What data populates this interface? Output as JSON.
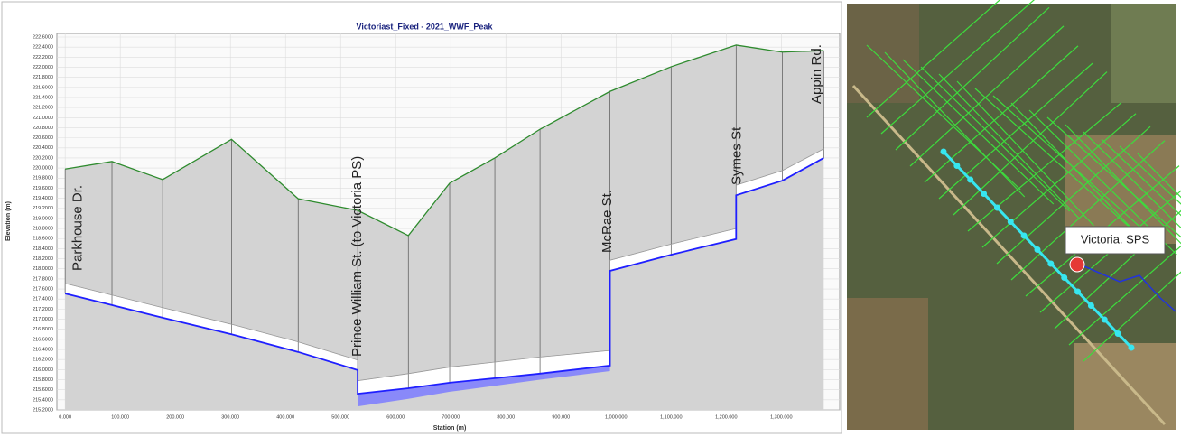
{
  "chart_data": {
    "type": "line",
    "title": "Victoriast_Fixed - 2021_WWF_Peak",
    "xlabel": "Station (m)",
    "ylabel": "Elevation (m)",
    "xlim": [
      -15,
      1406
    ],
    "ylim": [
      215.2,
      222.6
    ],
    "grid": true,
    "xticks": [
      {
        "value": 0,
        "label": "0.000"
      },
      {
        "value": 100,
        "label": "100.000"
      },
      {
        "value": 200,
        "label": "200.000"
      },
      {
        "value": 300,
        "label": "300.000"
      },
      {
        "value": 400,
        "label": "400.000"
      },
      {
        "value": 500,
        "label": "500.000"
      },
      {
        "value": 600,
        "label": "600.000"
      },
      {
        "value": 700,
        "label": "700.000"
      },
      {
        "value": 800,
        "label": "800.000"
      },
      {
        "value": 900,
        "label": "900.000"
      },
      {
        "value": 1000,
        "label": "1,000.000"
      },
      {
        "value": 1100,
        "label": "1,100.000"
      },
      {
        "value": 1200,
        "label": "1,200.000"
      },
      {
        "value": 1300,
        "label": "1,300.000"
      }
    ],
    "yticks": [
      {
        "value": 215.2,
        "label": "215.2000"
      },
      {
        "value": 215.4,
        "label": "215.4000"
      },
      {
        "value": 215.6,
        "label": "215.6000"
      },
      {
        "value": 215.8,
        "label": "215.8000"
      },
      {
        "value": 216.0,
        "label": "216.0000"
      },
      {
        "value": 216.2,
        "label": "216.2000"
      },
      {
        "value": 216.4,
        "label": "216.4000"
      },
      {
        "value": 216.6,
        "label": "216.6000"
      },
      {
        "value": 216.8,
        "label": "216.8000"
      },
      {
        "value": 217.0,
        "label": "217.0000"
      },
      {
        "value": 217.2,
        "label": "217.2000"
      },
      {
        "value": 217.4,
        "label": "217.4000"
      },
      {
        "value": 217.6,
        "label": "217.6000"
      },
      {
        "value": 217.8,
        "label": "217.8000"
      },
      {
        "value": 218.0,
        "label": "218.0000"
      },
      {
        "value": 218.2,
        "label": "218.2000"
      },
      {
        "value": 218.4,
        "label": "218.4000"
      },
      {
        "value": 218.6,
        "label": "218.6000"
      },
      {
        "value": 218.8,
        "label": "218.8000"
      },
      {
        "value": 219.0,
        "label": "219.0000"
      },
      {
        "value": 219.2,
        "label": "219.2000"
      },
      {
        "value": 219.4,
        "label": "219.4000"
      },
      {
        "value": 219.6,
        "label": "219.6000"
      },
      {
        "value": 219.8,
        "label": "219.8000"
      },
      {
        "value": 220.0,
        "label": "220.0000"
      },
      {
        "value": 220.2,
        "label": "220.2000"
      },
      {
        "value": 220.4,
        "label": "220.4000"
      },
      {
        "value": 220.6,
        "label": "220.6000"
      },
      {
        "value": 220.8,
        "label": "220.8000"
      },
      {
        "value": 221.0,
        "label": "221.0000"
      },
      {
        "value": 221.2,
        "label": "221.2000"
      },
      {
        "value": 221.4,
        "label": "221.4000"
      },
      {
        "value": 221.6,
        "label": "221.6000"
      },
      {
        "value": 221.8,
        "label": "221.8000"
      },
      {
        "value": 222.0,
        "label": "222.0000"
      },
      {
        "value": 222.2,
        "label": "222.2000"
      },
      {
        "value": 222.4,
        "label": "222.4000"
      },
      {
        "value": 222.6,
        "label": "222.6000"
      }
    ],
    "series": [
      {
        "color": "#2e8b2e",
        "x": [
          0,
          85,
          177,
          302,
          423,
          531,
          623,
          698,
          780,
          862,
          989,
          1100,
          1218,
          1302,
          1377
        ],
        "values": [
          219.98,
          220.13,
          219.77,
          220.57,
          219.39,
          219.16,
          218.66,
          219.7,
          220.2,
          220.77,
          221.52,
          222.01,
          222.44,
          222.3,
          222.33
        ]
      },
      {
        "color": "#1f1fff",
        "x": [
          0,
          85,
          177,
          302,
          423,
          531,
          531,
          623,
          698,
          780,
          862,
          989,
          989,
          1100,
          1218,
          1218,
          1302,
          1377
        ],
        "values": [
          217.51,
          217.28,
          217.03,
          216.7,
          216.35,
          215.99,
          215.52,
          215.63,
          215.74,
          215.83,
          215.92,
          216.08,
          217.96,
          218.28,
          218.59,
          219.46,
          219.75,
          220.2
        ]
      },
      {
        "color": "#9a9a9a",
        "x": [
          0,
          85,
          177,
          302,
          423,
          531,
          531,
          623,
          698,
          780,
          862,
          989,
          989,
          1100,
          1218,
          1218,
          1302,
          1377
        ],
        "values": [
          217.71,
          217.48,
          217.23,
          216.9,
          216.55,
          216.19,
          215.78,
          215.92,
          216.05,
          216.15,
          216.25,
          216.38,
          218.17,
          218.49,
          218.8,
          219.66,
          219.95,
          220.38
        ]
      },
      {
        "color": "#7b7bff",
        "x": [
          531,
          623,
          698,
          780,
          862,
          989
        ],
        "values": [
          215.27,
          215.42,
          215.56,
          215.68,
          215.8,
          215.97
        ]
      }
    ],
    "annotations": [
      {
        "text": "Parkhouse Dr.",
        "x": 14
      },
      {
        "text": "Prince William St. (to Victoria PS)",
        "x": 521
      },
      {
        "text": "McRae St.",
        "x": 975
      },
      {
        "text": "Symes St",
        "x": 1210
      },
      {
        "text": "Appin Rd.",
        "x": 1355
      }
    ]
  },
  "map": {
    "label": "Victoria. SPS"
  }
}
